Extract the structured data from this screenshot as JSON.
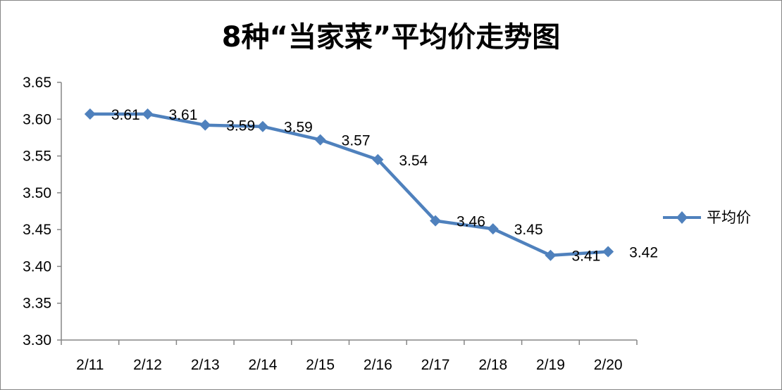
{
  "chart_data": {
    "type": "line",
    "title": "8种“当家菜”平均价走势图",
    "xlabel": "",
    "ylabel": "",
    "categories": [
      "2/11",
      "2/12",
      "2/13",
      "2/14",
      "2/15",
      "2/16",
      "2/17",
      "2/18",
      "2/19",
      "2/20"
    ],
    "series": [
      {
        "name": "平均价",
        "values": [
          3.607,
          3.607,
          3.592,
          3.59,
          3.572,
          3.545,
          3.462,
          3.451,
          3.415,
          3.42
        ],
        "labels": [
          "3.61",
          "3.61",
          "3.59",
          "3.59",
          "3.57",
          "3.54",
          "3.46",
          "3.45",
          "3.41",
          "3.42"
        ],
        "color": "#4f81bd",
        "marker": "diamond"
      }
    ],
    "ylim": [
      3.3,
      3.65
    ],
    "yticks": [
      "3.30",
      "3.35",
      "3.40",
      "3.45",
      "3.50",
      "3.55",
      "3.60",
      "3.65"
    ],
    "grid": false,
    "legend_position": "right"
  }
}
